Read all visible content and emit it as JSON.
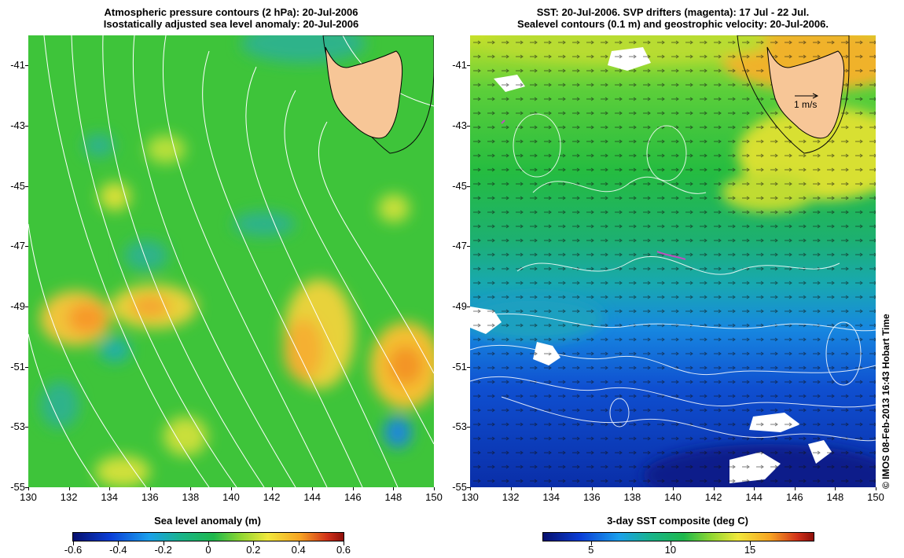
{
  "left_panel": {
    "title_line1": "Atmospheric pressure contours (2 hPa): 20-Jul-2006",
    "title_line2": "Isostatically adjusted sea level anomaly: 20-Jul-2006",
    "colorbar": {
      "title": "Sea level anomaly (m)",
      "min": -0.6,
      "max": 0.6,
      "ticks": [
        "-0.6",
        "-0.4",
        "-0.2",
        "0",
        "0.2",
        "0.4",
        "0.6"
      ],
      "tick_values": [
        -0.6,
        -0.4,
        -0.2,
        0,
        0.2,
        0.4,
        0.6
      ]
    }
  },
  "right_panel": {
    "title_line1": "SST: 20-Jul-2006. SVP drifters (magenta): 17 Jul - 22 Jul.",
    "title_line2": "Sealevel contours (0.1 m) and geostrophic velocity: 20-Jul-2006.",
    "velocity_scale_label": "1 m/s",
    "colorbar": {
      "title": "3-day SST composite (deg C)",
      "min": 2,
      "max": 19,
      "ticks": [
        "5",
        "10",
        "15"
      ],
      "tick_values": [
        5,
        10,
        15
      ]
    }
  },
  "axes": {
    "lon_min": 130,
    "lon_max": 150,
    "lat_min": -55,
    "lat_max": -40,
    "x_ticks": [
      "130",
      "132",
      "134",
      "136",
      "138",
      "140",
      "142",
      "144",
      "146",
      "148",
      "150"
    ],
    "x_tick_values": [
      130,
      132,
      134,
      136,
      138,
      140,
      142,
      144,
      146,
      148,
      150
    ],
    "y_ticks": [
      "-41",
      "-43",
      "-45",
      "-47",
      "-49",
      "-51",
      "-53",
      "-55"
    ],
    "y_tick_values": [
      -41,
      -43,
      -45,
      -47,
      -49,
      -51,
      -53,
      -55
    ]
  },
  "copyright": "© IMOS 08-Feb-2013 16:43 Hobart Time",
  "colors": {
    "land": "#f7c697",
    "sla_background": "#3ec43a",
    "sst_north": "#c8e02a",
    "sst_south": "#0a2ea8",
    "drifter": "#c050c0"
  }
}
